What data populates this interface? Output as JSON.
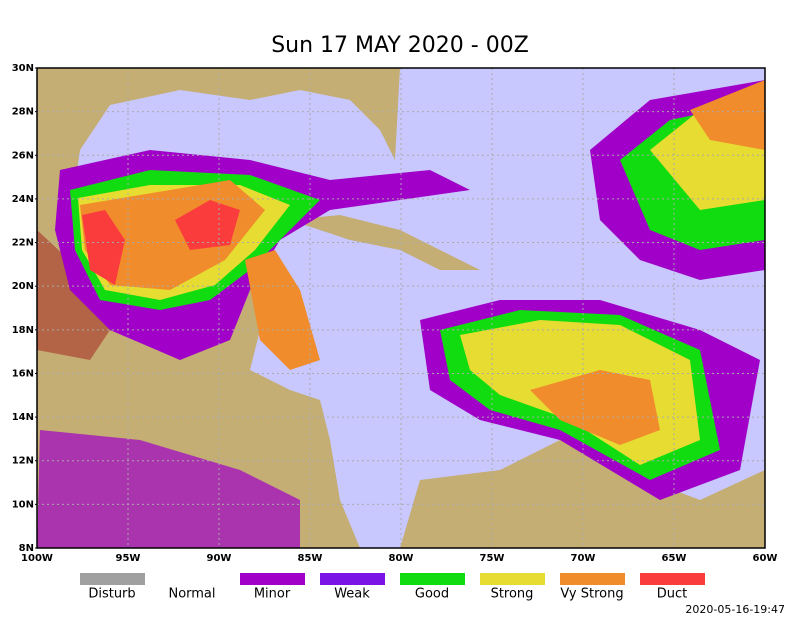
{
  "title": "Sun 17 MAY 2020 - 00Z",
  "map": {
    "lat_labels": [
      "30N",
      "28N",
      "26N",
      "24N",
      "22N",
      "20N",
      "18N",
      "16N",
      "14N",
      "12N",
      "10N",
      "8N"
    ],
    "lon_labels": [
      "100W",
      "95W",
      "90W",
      "85W",
      "80W",
      "75W",
      "70W",
      "65W",
      "60W"
    ]
  },
  "legend": [
    {
      "label": "Disturb",
      "color": "#a0a0a0"
    },
    {
      "label": "Normal",
      "color": null
    },
    {
      "label": "Minor",
      "color": "#a000c8"
    },
    {
      "label": "Weak",
      "color": "#7a14e6"
    },
    {
      "label": "Good",
      "color": "#10dc10"
    },
    {
      "label": "Strong",
      "color": "#e6dc32"
    },
    {
      "label": "Vy Strong",
      "color": "#f08c2c"
    },
    {
      "label": "Duct",
      "color": "#fa3c3c"
    }
  ],
  "timestamp": "2020-05-16-19:47"
}
